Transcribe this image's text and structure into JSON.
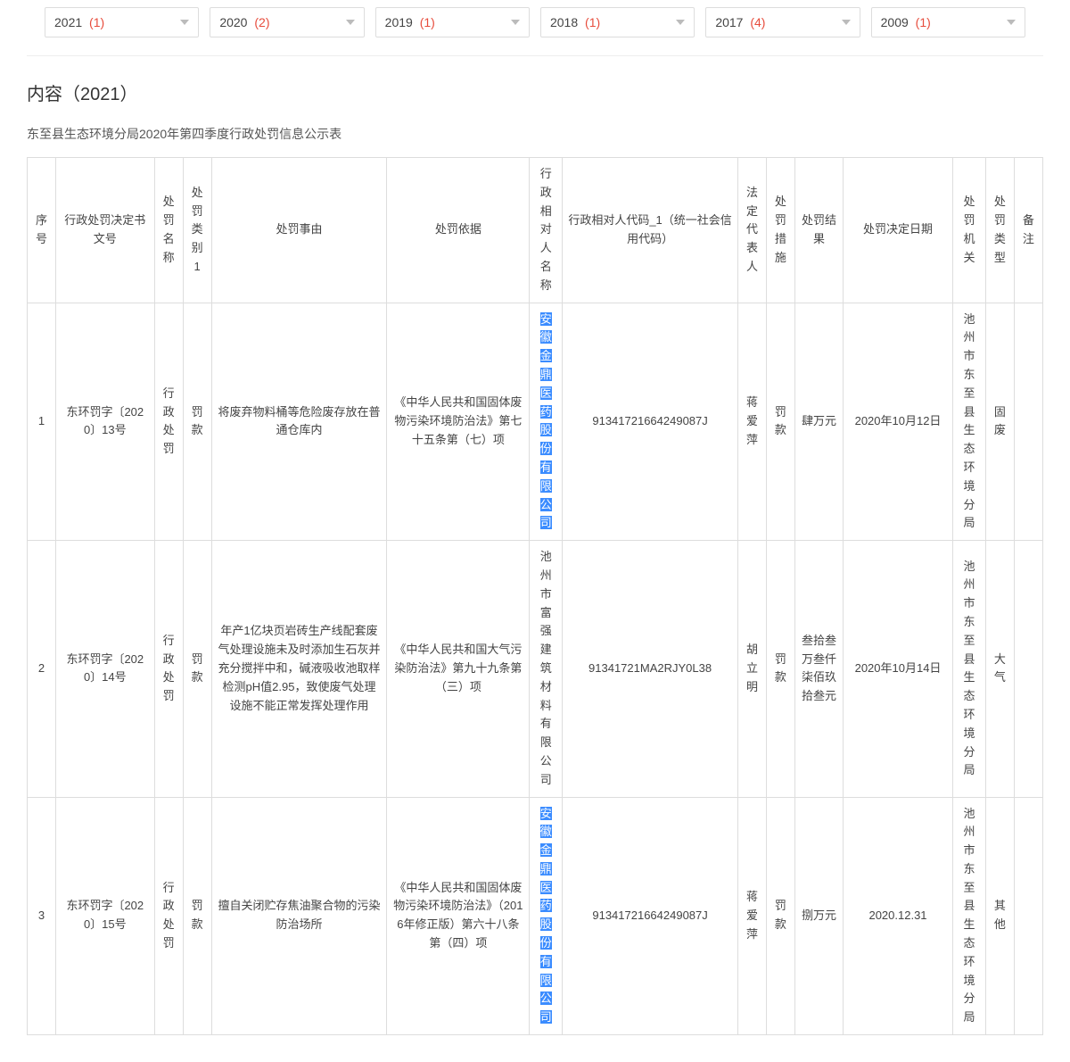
{
  "yearFilters": [
    {
      "year": "2021",
      "count": "(1)"
    },
    {
      "year": "2020",
      "count": "(2)"
    },
    {
      "year": "2019",
      "count": "(1)"
    },
    {
      "year": "2018",
      "count": "(1)"
    },
    {
      "year": "2017",
      "count": "(4)"
    },
    {
      "year": "2009",
      "count": "(1)"
    }
  ],
  "sectionTitle": "内容（2021）",
  "subtitle": "东至县生态环境分局2020年第四季度行政处罚信息公示表",
  "columns": [
    "序号",
    "行政处罚决定书文号",
    "处罚名称",
    "处罚类别1",
    "处罚事由",
    "处罚依据",
    "行政相对人名称",
    "行政相对人代码_1（统一社会信用代码）",
    "法定代表人",
    "处罚措施",
    "处罚结果",
    "处罚决定日期",
    "处罚机关",
    "处罚类型",
    "备注"
  ],
  "highlightCompany": "安徽金鼎医药股份有限公司",
  "rows": [
    {
      "seq": "1",
      "docno": "东环罚字〔2020〕13号",
      "pname": "行政处罚",
      "ptype": "罚款",
      "reason": "将废弃物料桶等危险废存放在普通仓库内",
      "basis": "《中华人民共和国固体废物污染环境防治法》第七十五条第（七）项",
      "target": "安徽金鼎医药股份有限公司",
      "targetHighlighted": true,
      "code": "91341721664249087J",
      "rep": "蒋爱萍",
      "meas": "罚款",
      "result": "肆万元",
      "date": "2020年10月12日",
      "org": "池州市东至县生态环境分局",
      "kind": "固废",
      "note": ""
    },
    {
      "seq": "2",
      "docno": "东环罚字〔2020〕14号",
      "pname": "行政处罚",
      "ptype": "罚款",
      "reason": "年产1亿块页岩砖生产线配套废气处理设施未及时添加生石灰并充分搅拌中和，碱液吸收池取样检测pH值2.95，致使废气处理设施不能正常发挥处理作用",
      "basis": "《中华人民共和国大气污染防治法》第九十九条第（三）项",
      "target": "池州市富强建筑材料有限公司",
      "targetHighlighted": false,
      "code": "91341721MA2RJY0L38",
      "rep": "胡立明",
      "meas": "罚款",
      "result": "叁拾叁万叁仟柒佰玖拾叁元",
      "date": "2020年10月14日",
      "org": "池州市东至县生态环境分局",
      "kind": "大气",
      "note": ""
    },
    {
      "seq": "3",
      "docno": "东环罚字〔2020〕15号",
      "pname": "行政处罚",
      "ptype": "罚款",
      "reason": "擅自关闭贮存焦油聚合物的污染防治场所",
      "basis": "《中华人民共和国固体废物污染环境防治法》（2016年修正版）第六十八条第（四）项",
      "target": "安徽金鼎医药股份有限公司",
      "targetHighlighted": true,
      "code": "91341721664249087J",
      "rep": "蒋爱萍",
      "meas": "罚款",
      "result": "捌万元",
      "date": "2020.12.31",
      "org": "池州市东至县生态环境分局",
      "kind": "其他",
      "note": ""
    }
  ]
}
